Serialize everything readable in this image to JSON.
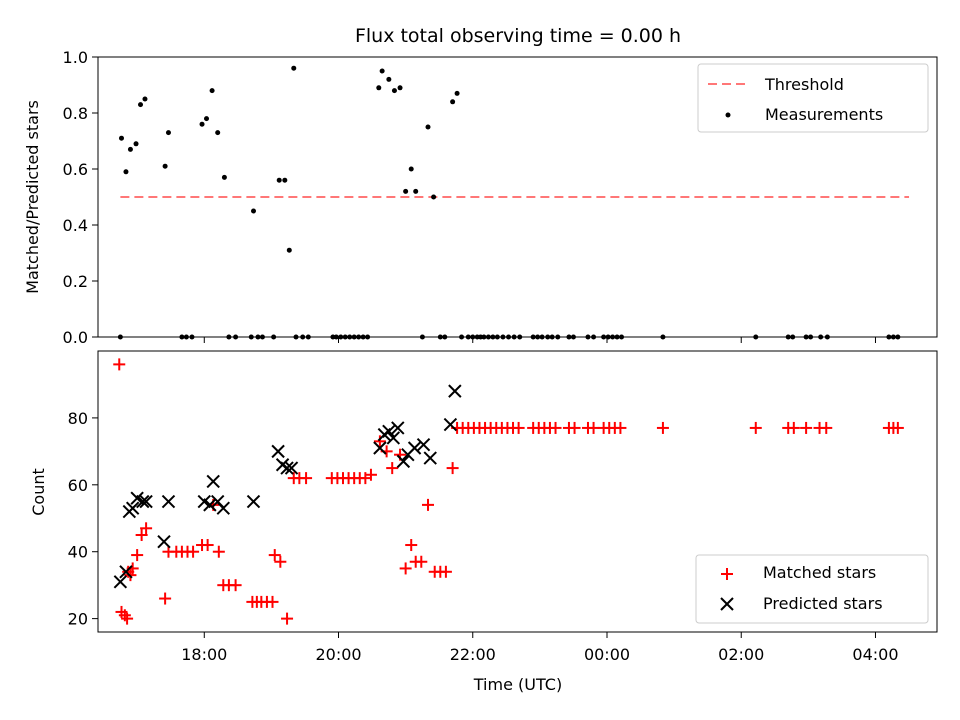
{
  "chart_data": [
    {
      "type": "scatter",
      "title": "Flux total observing time = 0.00 h",
      "xlabel": "",
      "ylabel": "Matched/Predicted stars",
      "xlim": [
        "16:25",
        "04:55"
      ],
      "ylim": [
        0,
        1.0
      ],
      "yticks": [
        "0.0",
        "0.2",
        "0.4",
        "0.6",
        "0.8",
        "1.0"
      ],
      "legend_position": "top-right",
      "threshold": {
        "name": "Threshold",
        "value": 0.5,
        "x_range": [
          "16:45",
          "04:30"
        ],
        "color": "#ff7777",
        "style": "dashed"
      },
      "series": [
        {
          "name": "Measurements",
          "color": "#000000",
          "marker": "dot",
          "points": [
            {
              "x": "16:46",
              "y": 0.71
            },
            {
              "x": "16:50",
              "y": 0.59
            },
            {
              "x": "16:54",
              "y": 0.67
            },
            {
              "x": "16:59",
              "y": 0.69
            },
            {
              "x": "17:03",
              "y": 0.83
            },
            {
              "x": "17:07",
              "y": 0.85
            },
            {
              "x": "17:25",
              "y": 0.61
            },
            {
              "x": "17:28",
              "y": 0.73
            },
            {
              "x": "17:58",
              "y": 0.76
            },
            {
              "x": "18:02",
              "y": 0.78
            },
            {
              "x": "18:07",
              "y": 0.88
            },
            {
              "x": "18:12",
              "y": 0.73
            },
            {
              "x": "18:18",
              "y": 0.57
            },
            {
              "x": "18:44",
              "y": 0.45
            },
            {
              "x": "19:07",
              "y": 0.56
            },
            {
              "x": "19:12",
              "y": 0.56
            },
            {
              "x": "19:16",
              "y": 0.31
            },
            {
              "x": "19:20",
              "y": 0.96
            },
            {
              "x": "20:36",
              "y": 0.89
            },
            {
              "x": "20:39",
              "y": 0.95
            },
            {
              "x": "20:45",
              "y": 0.92
            },
            {
              "x": "20:50",
              "y": 0.88
            },
            {
              "x": "20:55",
              "y": 0.89
            },
            {
              "x": "21:00",
              "y": 0.52
            },
            {
              "x": "21:05",
              "y": 0.6
            },
            {
              "x": "21:09",
              "y": 0.52
            },
            {
              "x": "21:20",
              "y": 0.75
            },
            {
              "x": "21:25",
              "y": 0.5
            },
            {
              "x": "21:42",
              "y": 0.84
            },
            {
              "x": "21:46",
              "y": 0.87
            },
            {
              "x": "16:45",
              "y": 0
            },
            {
              "x": "17:40",
              "y": 0
            },
            {
              "x": "17:44",
              "y": 0
            },
            {
              "x": "17:49",
              "y": 0
            },
            {
              "x": "18:22",
              "y": 0
            },
            {
              "x": "18:28",
              "y": 0
            },
            {
              "x": "18:42",
              "y": 0
            },
            {
              "x": "18:48",
              "y": 0
            },
            {
              "x": "18:52",
              "y": 0
            },
            {
              "x": "19:02",
              "y": 0
            },
            {
              "x": "19:22",
              "y": 0
            },
            {
              "x": "19:28",
              "y": 0
            },
            {
              "x": "19:33",
              "y": 0
            },
            {
              "x": "19:55",
              "y": 0
            },
            {
              "x": "19:58",
              "y": 0
            },
            {
              "x": "20:02",
              "y": 0
            },
            {
              "x": "20:06",
              "y": 0
            },
            {
              "x": "20:10",
              "y": 0
            },
            {
              "x": "20:14",
              "y": 0
            },
            {
              "x": "20:18",
              "y": 0
            },
            {
              "x": "20:22",
              "y": 0
            },
            {
              "x": "20:26",
              "y": 0
            },
            {
              "x": "21:15",
              "y": 0
            },
            {
              "x": "21:31",
              "y": 0
            },
            {
              "x": "21:35",
              "y": 0
            },
            {
              "x": "21:50",
              "y": 0
            },
            {
              "x": "21:56",
              "y": 0
            },
            {
              "x": "22:00",
              "y": 0
            },
            {
              "x": "22:04",
              "y": 0
            },
            {
              "x": "22:07",
              "y": 0
            },
            {
              "x": "22:10",
              "y": 0
            },
            {
              "x": "22:14",
              "y": 0
            },
            {
              "x": "22:18",
              "y": 0
            },
            {
              "x": "22:22",
              "y": 0
            },
            {
              "x": "22:27",
              "y": 0
            },
            {
              "x": "22:32",
              "y": 0
            },
            {
              "x": "22:37",
              "y": 0
            },
            {
              "x": "22:42",
              "y": 0
            },
            {
              "x": "22:54",
              "y": 0
            },
            {
              "x": "22:58",
              "y": 0
            },
            {
              "x": "23:02",
              "y": 0
            },
            {
              "x": "23:07",
              "y": 0
            },
            {
              "x": "23:11",
              "y": 0
            },
            {
              "x": "23:16",
              "y": 0
            },
            {
              "x": "23:26",
              "y": 0
            },
            {
              "x": "23:30",
              "y": 0
            },
            {
              "x": "23:43",
              "y": 0
            },
            {
              "x": "23:48",
              "y": 0
            },
            {
              "x": "23:57",
              "y": 0
            },
            {
              "x": "00:01",
              "y": 0
            },
            {
              "x": "00:05",
              "y": 0
            },
            {
              "x": "00:09",
              "y": 0
            },
            {
              "x": "00:13",
              "y": 0
            },
            {
              "x": "00:50",
              "y": 0
            },
            {
              "x": "02:13",
              "y": 0
            },
            {
              "x": "02:42",
              "y": 0
            },
            {
              "x": "02:46",
              "y": 0
            },
            {
              "x": "02:58",
              "y": 0
            },
            {
              "x": "03:02",
              "y": 0
            },
            {
              "x": "03:11",
              "y": 0
            },
            {
              "x": "03:17",
              "y": 0
            },
            {
              "x": "04:12",
              "y": 0
            },
            {
              "x": "04:16",
              "y": 0
            },
            {
              "x": "04:20",
              "y": 0
            }
          ]
        }
      ]
    },
    {
      "type": "scatter",
      "title": "",
      "xlabel": "Time (UTC)",
      "ylabel": "Count",
      "xlim": [
        "16:25",
        "04:55"
      ],
      "ylim": [
        16,
        100
      ],
      "xticks": [
        "18:00",
        "20:00",
        "22:00",
        "00:00",
        "02:00",
        "04:00"
      ],
      "yticks": [
        "20",
        "40",
        "60",
        "80"
      ],
      "legend_position": "bottom-right",
      "series": [
        {
          "name": "Matched stars",
          "color": "#ff0000",
          "marker": "plus",
          "points": [
            {
              "x": "16:44",
              "y": 96
            },
            {
              "x": "16:46",
              "y": 22
            },
            {
              "x": "16:49",
              "y": 21
            },
            {
              "x": "16:51",
              "y": 20
            },
            {
              "x": "16:52",
              "y": 34
            },
            {
              "x": "16:54",
              "y": 33
            },
            {
              "x": "16:56",
              "y": 35
            },
            {
              "x": "17:00",
              "y": 39
            },
            {
              "x": "17:04",
              "y": 45
            },
            {
              "x": "17:08",
              "y": 47
            },
            {
              "x": "17:25",
              "y": 26
            },
            {
              "x": "17:28",
              "y": 40
            },
            {
              "x": "17:35",
              "y": 40
            },
            {
              "x": "17:40",
              "y": 40
            },
            {
              "x": "17:45",
              "y": 40
            },
            {
              "x": "17:50",
              "y": 40
            },
            {
              "x": "17:58",
              "y": 42
            },
            {
              "x": "18:03",
              "y": 42
            },
            {
              "x": "18:08",
              "y": 54
            },
            {
              "x": "18:13",
              "y": 40
            },
            {
              "x": "18:17",
              "y": 30
            },
            {
              "x": "18:22",
              "y": 30
            },
            {
              "x": "18:28",
              "y": 30
            },
            {
              "x": "18:43",
              "y": 25
            },
            {
              "x": "18:47",
              "y": 25
            },
            {
              "x": "18:51",
              "y": 25
            },
            {
              "x": "18:56",
              "y": 25
            },
            {
              "x": "19:01",
              "y": 25
            },
            {
              "x": "19:03",
              "y": 39
            },
            {
              "x": "19:08",
              "y": 37
            },
            {
              "x": "19:14",
              "y": 20
            },
            {
              "x": "19:20",
              "y": 62
            },
            {
              "x": "19:25",
              "y": 62
            },
            {
              "x": "19:31",
              "y": 62
            },
            {
              "x": "19:54",
              "y": 62
            },
            {
              "x": "19:59",
              "y": 62
            },
            {
              "x": "20:04",
              "y": 62
            },
            {
              "x": "20:09",
              "y": 62
            },
            {
              "x": "20:14",
              "y": 62
            },
            {
              "x": "20:19",
              "y": 62
            },
            {
              "x": "20:24",
              "y": 62
            },
            {
              "x": "20:29",
              "y": 63
            },
            {
              "x": "20:37",
              "y": 73
            },
            {
              "x": "20:43",
              "y": 70
            },
            {
              "x": "20:48",
              "y": 65
            },
            {
              "x": "20:55",
              "y": 69
            },
            {
              "x": "21:00",
              "y": 35
            },
            {
              "x": "21:05",
              "y": 42
            },
            {
              "x": "21:09",
              "y": 37
            },
            {
              "x": "21:14",
              "y": 37
            },
            {
              "x": "21:20",
              "y": 54
            },
            {
              "x": "21:26",
              "y": 34
            },
            {
              "x": "21:31",
              "y": 34
            },
            {
              "x": "21:36",
              "y": 34
            },
            {
              "x": "21:42",
              "y": 65
            },
            {
              "x": "21:46",
              "y": 77
            },
            {
              "x": "21:51",
              "y": 77
            },
            {
              "x": "21:56",
              "y": 77
            },
            {
              "x": "22:01",
              "y": 77
            },
            {
              "x": "22:06",
              "y": 77
            },
            {
              "x": "22:11",
              "y": 77
            },
            {
              "x": "22:16",
              "y": 77
            },
            {
              "x": "22:21",
              "y": 77
            },
            {
              "x": "22:26",
              "y": 77
            },
            {
              "x": "22:31",
              "y": 77
            },
            {
              "x": "22:36",
              "y": 77
            },
            {
              "x": "22:41",
              "y": 77
            },
            {
              "x": "22:54",
              "y": 77
            },
            {
              "x": "22:59",
              "y": 77
            },
            {
              "x": "23:04",
              "y": 77
            },
            {
              "x": "23:09",
              "y": 77
            },
            {
              "x": "23:14",
              "y": 77
            },
            {
              "x": "23:26",
              "y": 77
            },
            {
              "x": "23:31",
              "y": 77
            },
            {
              "x": "23:43",
              "y": 77
            },
            {
              "x": "23:48",
              "y": 77
            },
            {
              "x": "23:57",
              "y": 77
            },
            {
              "x": "00:02",
              "y": 77
            },
            {
              "x": "00:07",
              "y": 77
            },
            {
              "x": "00:12",
              "y": 77
            },
            {
              "x": "00:50",
              "y": 77
            },
            {
              "x": "02:13",
              "y": 77
            },
            {
              "x": "02:42",
              "y": 77
            },
            {
              "x": "02:47",
              "y": 77
            },
            {
              "x": "02:58",
              "y": 77
            },
            {
              "x": "03:10",
              "y": 77
            },
            {
              "x": "03:16",
              "y": 77
            },
            {
              "x": "04:12",
              "y": 77
            },
            {
              "x": "04:16",
              "y": 77
            },
            {
              "x": "04:20",
              "y": 77
            }
          ]
        },
        {
          "name": "Predicted stars",
          "color": "#000000",
          "marker": "x",
          "points": [
            {
              "x": "16:45",
              "y": 31
            },
            {
              "x": "16:50",
              "y": 34
            },
            {
              "x": "16:53",
              "y": 52
            },
            {
              "x": "16:56",
              "y": 53
            },
            {
              "x": "17:00",
              "y": 56
            },
            {
              "x": "17:05",
              "y": 55
            },
            {
              "x": "17:08",
              "y": 55
            },
            {
              "x": "17:24",
              "y": 43
            },
            {
              "x": "17:28",
              "y": 55
            },
            {
              "x": "18:00",
              "y": 55
            },
            {
              "x": "18:05",
              "y": 54
            },
            {
              "x": "18:08",
              "y": 61
            },
            {
              "x": "18:12",
              "y": 55
            },
            {
              "x": "18:17",
              "y": 53
            },
            {
              "x": "18:44",
              "y": 55
            },
            {
              "x": "19:06",
              "y": 70
            },
            {
              "x": "19:10",
              "y": 66
            },
            {
              "x": "19:14",
              "y": 65
            },
            {
              "x": "19:18",
              "y": 65
            },
            {
              "x": "20:37",
              "y": 71
            },
            {
              "x": "20:41",
              "y": 75
            },
            {
              "x": "20:45",
              "y": 76
            },
            {
              "x": "20:49",
              "y": 74
            },
            {
              "x": "20:53",
              "y": 77
            },
            {
              "x": "20:58",
              "y": 67
            },
            {
              "x": "21:02",
              "y": 69
            },
            {
              "x": "21:08",
              "y": 71
            },
            {
              "x": "21:16",
              "y": 72
            },
            {
              "x": "21:22",
              "y": 68
            },
            {
              "x": "21:40",
              "y": 78
            },
            {
              "x": "21:44",
              "y": 88
            }
          ]
        }
      ]
    }
  ]
}
